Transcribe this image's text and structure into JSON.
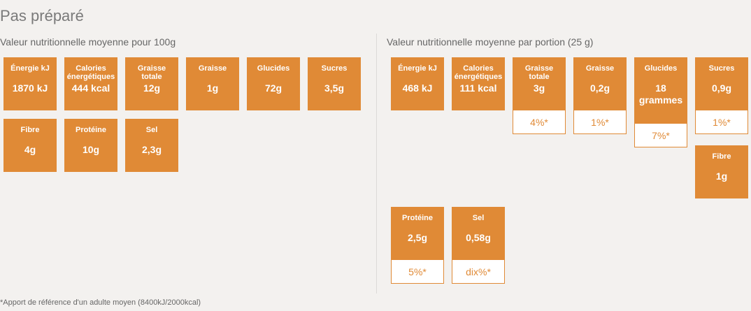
{
  "title": "Pas préparé",
  "per100": {
    "label": "Valeur nutritionnelle moyenne pour 100g",
    "items": [
      {
        "name": "Énergie kJ",
        "value": "1870 kJ"
      },
      {
        "name": "Calories énergétiques",
        "value": "444 kcal"
      },
      {
        "name": "Graisse totale",
        "value": "12g"
      },
      {
        "name": "Graisse",
        "value": "1g"
      },
      {
        "name": "Glucides",
        "value": "72g"
      },
      {
        "name": "Sucres",
        "value": "3,5g"
      },
      {
        "name": "Fibre",
        "value": "4g"
      },
      {
        "name": "Protéine",
        "value": "10g"
      },
      {
        "name": "Sel",
        "value": "2,3g"
      }
    ]
  },
  "perPortion": {
    "label": "Valeur nutritionnelle moyenne par portion (25 g)",
    "items": [
      {
        "name": "Énergie kJ",
        "value": "468 kJ",
        "pct": ""
      },
      {
        "name": "Calories énergétiques",
        "value": "111 kcal",
        "pct": ""
      },
      {
        "name": "Graisse totale",
        "value": "3g",
        "pct": "4%*"
      },
      {
        "name": "Graisse",
        "value": "0,2g",
        "pct": "1%*"
      },
      {
        "name": "Glucides",
        "value": "18 grammes",
        "pct": "7%*"
      },
      {
        "name": "Sucres",
        "value": "0,9g",
        "pct": "1%*"
      },
      {
        "name": "Fibre",
        "value": "1g",
        "pct": ""
      },
      {
        "name": "Protéine",
        "value": "2,5g",
        "pct": "5%*"
      },
      {
        "name": "Sel",
        "value": "0,58g",
        "pct": "dix%*"
      }
    ]
  },
  "footnote": "*Apport de référence d'un adulte moyen (8400kJ/2000kcal)"
}
